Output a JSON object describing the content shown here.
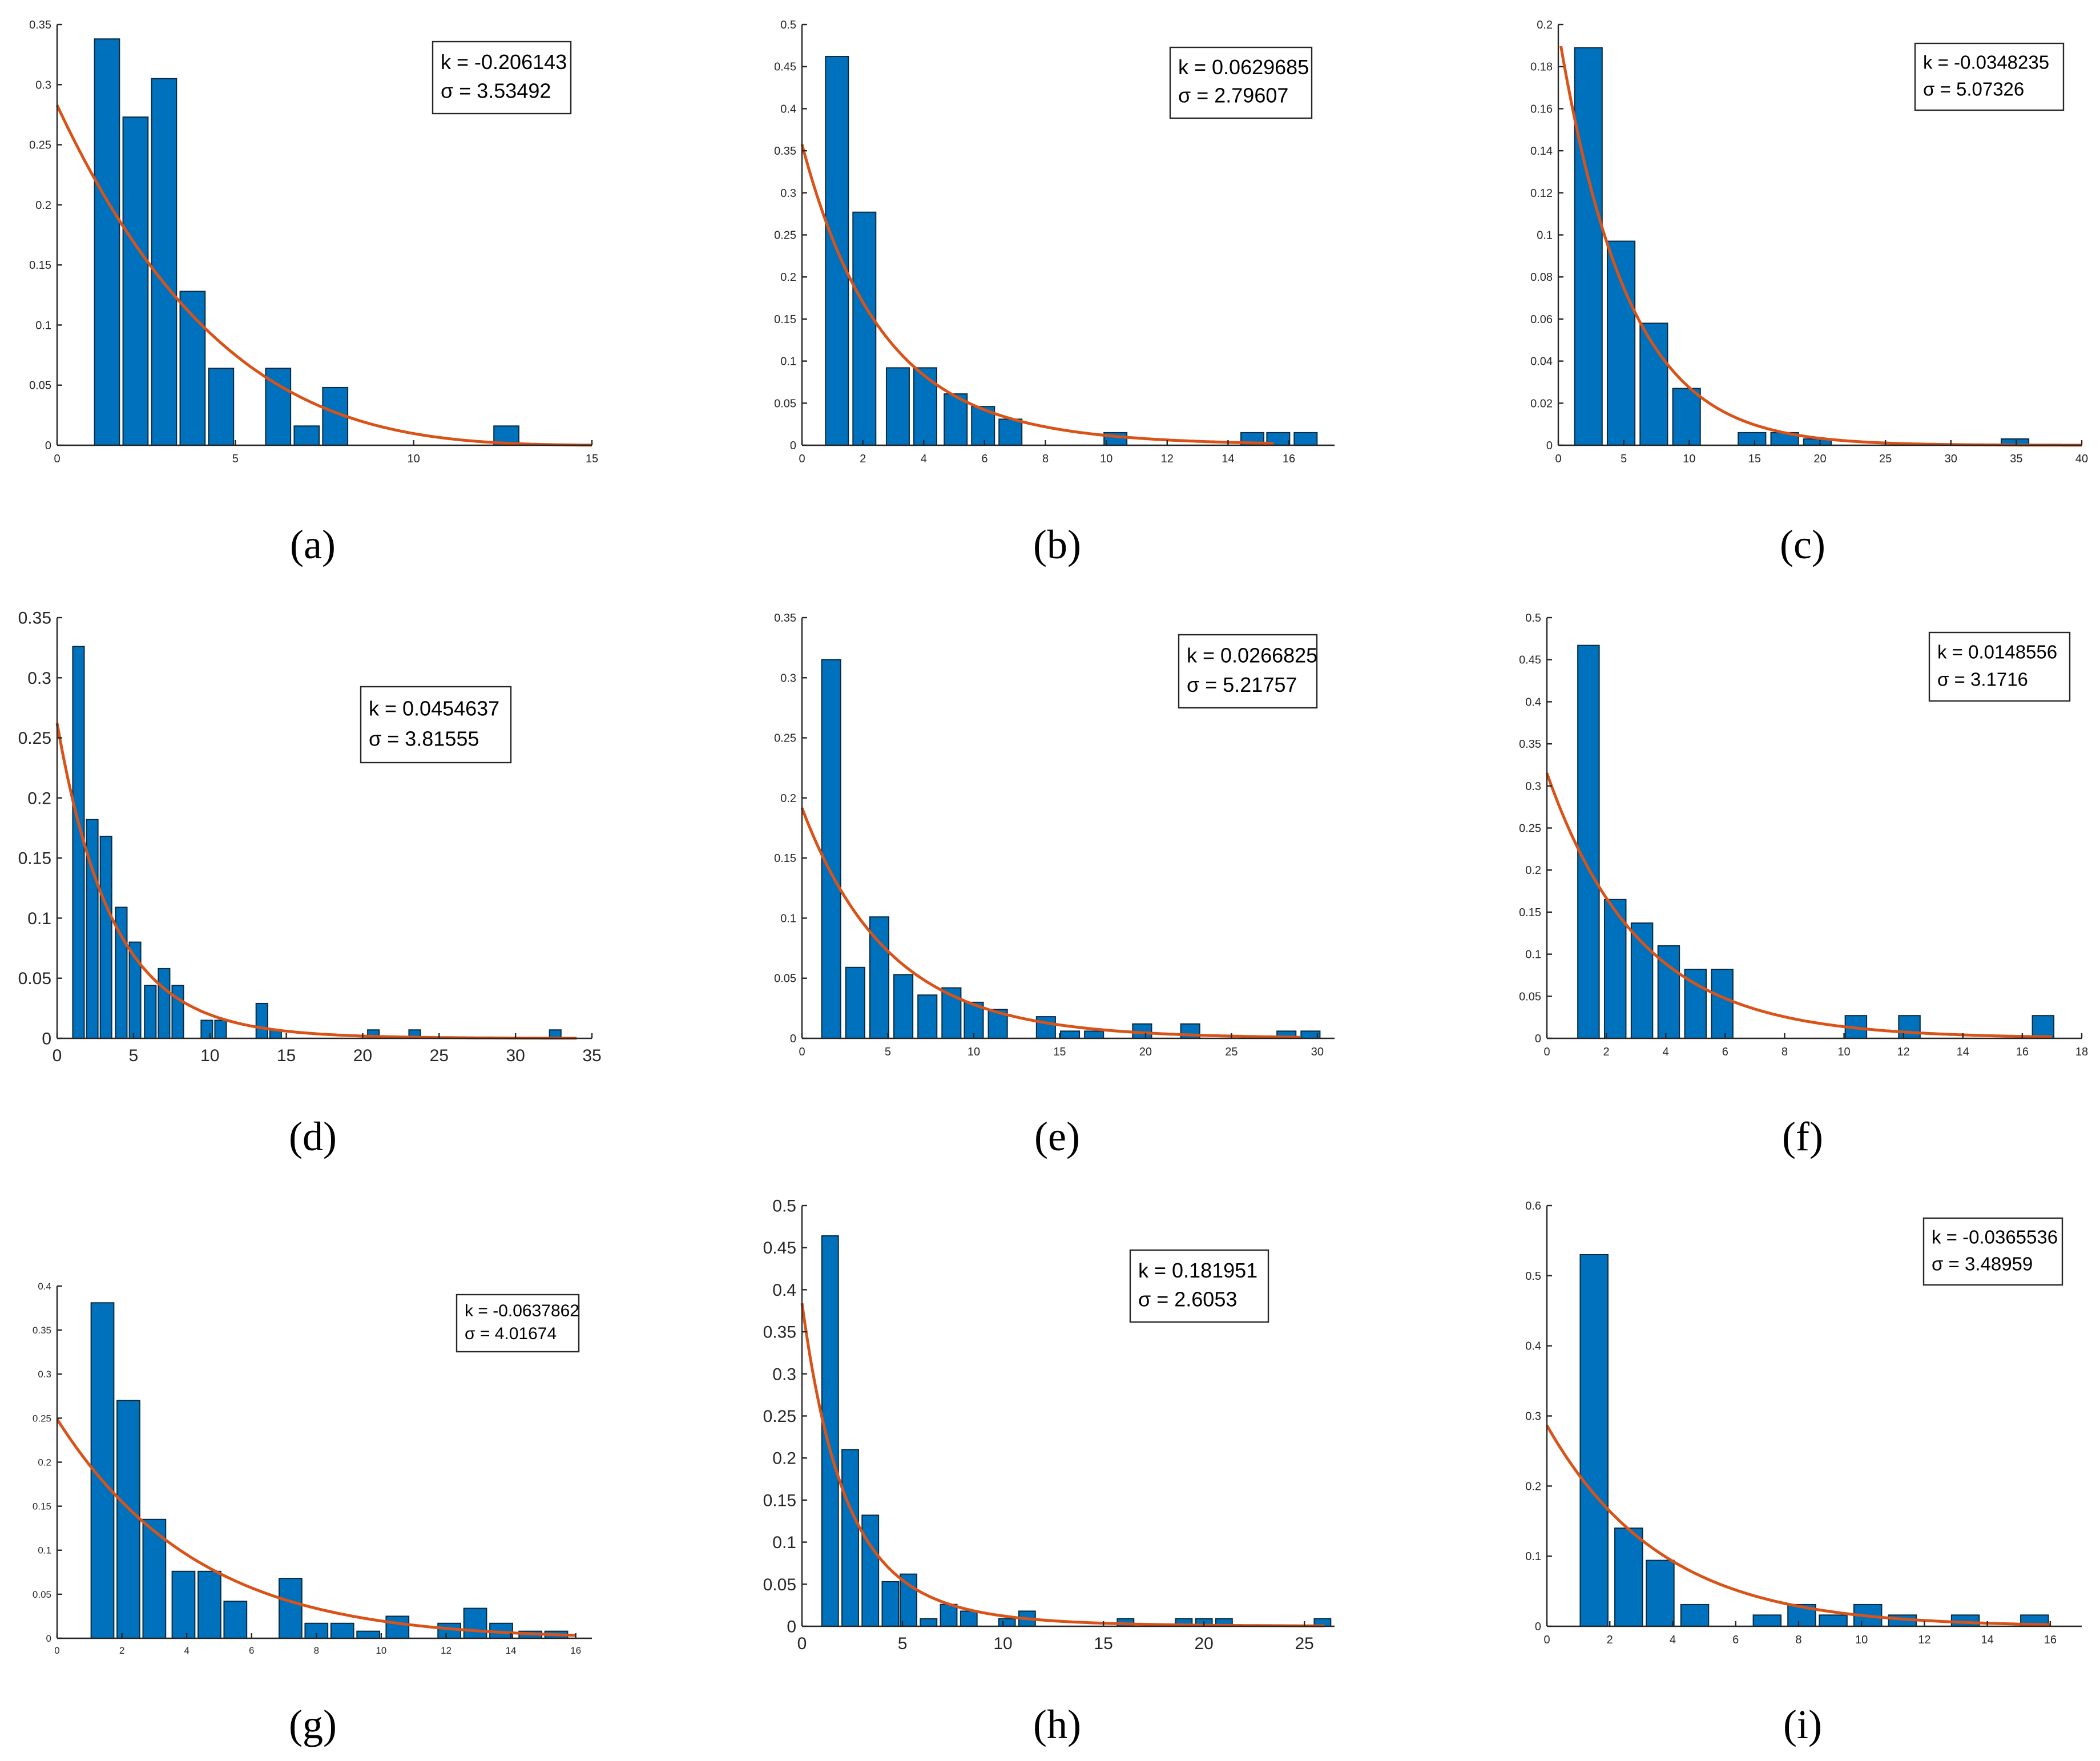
{
  "figure": {
    "colors": {
      "bar": "#0072BD",
      "fit": "#D95319",
      "axis": "#262626"
    }
  },
  "chart_data": [
    {
      "type": "bar",
      "caption": "(a)",
      "legend": [
        "k = -0.206143",
        "σ =   3.53492"
      ],
      "xlim": [
        0,
        15
      ],
      "ylim": [
        0,
        0.35
      ],
      "xticks": [
        0,
        5,
        10,
        15
      ],
      "xtick_labels": [
        "0",
        "5",
        "10",
        "15"
      ],
      "yticks": [
        0,
        0.05,
        0.1,
        0.15,
        0.2,
        0.25,
        0.3,
        0.35
      ],
      "ytick_labels": [
        "0",
        "0.05",
        "0.1",
        "0.15",
        "0.2",
        "0.25",
        "0.3",
        "0.35"
      ],
      "bar_width": 0.7,
      "x": [
        1.4,
        2.2,
        3.0,
        3.8,
        4.6,
        6.2,
        7.0,
        7.8,
        12.6
      ],
      "values": [
        0.338,
        0.273,
        0.305,
        0.128,
        0.064,
        0.064,
        0.016,
        0.048,
        0.016
      ],
      "fit": {
        "k": -0.206143,
        "sigma": 3.53492,
        "x_start": 0,
        "x_end": 15
      }
    },
    {
      "type": "bar",
      "caption": "(b)",
      "legend": [
        "k = 0.0629685",
        "σ =   2.79607"
      ],
      "xlim": [
        0,
        17.5
      ],
      "ylim": [
        0,
        0.5
      ],
      "xticks": [
        0,
        2,
        4,
        6,
        8,
        10,
        12,
        14,
        16
      ],
      "xtick_labels": [
        "0",
        "2",
        "4",
        "6",
        "8",
        "10",
        "12",
        "14",
        "16"
      ],
      "yticks": [
        0,
        0.05,
        0.1,
        0.15,
        0.2,
        0.25,
        0.3,
        0.35,
        0.4,
        0.45,
        0.5
      ],
      "ytick_labels": [
        "0",
        "0.05",
        "0.1",
        "0.15",
        "0.2",
        "0.25",
        "0.3",
        "0.35",
        "0.4",
        "0.45",
        "0.5"
      ],
      "bar_width": 0.75,
      "x": [
        1.15,
        2.05,
        3.15,
        4.05,
        5.05,
        5.95,
        6.85,
        10.3,
        14.8,
        15.65,
        16.55
      ],
      "values": [
        0.462,
        0.277,
        0.092,
        0.092,
        0.061,
        0.046,
        0.031,
        0.015,
        0.015,
        0.015,
        0.015
      ],
      "fit": {
        "k": 0.0629685,
        "sigma": 2.79607,
        "x_start": 0,
        "x_end": 15.5
      }
    },
    {
      "type": "bar",
      "caption": "(c)",
      "legend": [
        "k = -0.0348235",
        "σ = 5.07326"
      ],
      "xlim": [
        0,
        40
      ],
      "ylim": [
        0,
        0.2
      ],
      "xticks": [
        0,
        5,
        10,
        15,
        20,
        25,
        30,
        35,
        40
      ],
      "xtick_labels": [
        "0",
        "5",
        "10",
        "15",
        "20",
        "25",
        "30",
        "35",
        "40"
      ],
      "yticks": [
        0,
        0.02,
        0.04,
        0.06,
        0.08,
        0.1,
        0.12,
        0.14,
        0.16,
        0.18,
        0.2
      ],
      "ytick_labels": [
        "0",
        "0.02",
        "0.04",
        "0.06",
        "0.08",
        "0.1",
        "0.12",
        "0.14",
        "0.16",
        "0.18",
        "0.2"
      ],
      "bar_width": 2.1,
      "x": [
        2.3,
        4.8,
        7.3,
        9.8,
        14.8,
        17.3,
        19.8,
        34.9
      ],
      "values": [
        0.189,
        0.097,
        0.058,
        0.027,
        0.006,
        0.006,
        0.003,
        0.003
      ],
      "fit": {
        "k": -0.0348235,
        "sigma": 5.07326,
        "x_start": 0.2,
        "x_end": 40
      }
    },
    {
      "type": "bar",
      "caption": "(d)",
      "legend": [
        "k = 0.0454637",
        "σ =   3.81555"
      ],
      "xlim": [
        0,
        35
      ],
      "ylim": [
        0,
        0.35
      ],
      "xticks": [
        0,
        5,
        10,
        15,
        20,
        25,
        30,
        35
      ],
      "xtick_labels": [
        "0",
        "5",
        "10",
        "15",
        "20",
        "25",
        "30",
        "35"
      ],
      "yticks": [
        0,
        0.05,
        0.1,
        0.15,
        0.2,
        0.25,
        0.3,
        0.35
      ],
      "ytick_labels": [
        "0",
        "0.05",
        "0.1",
        "0.15",
        "0.2",
        "0.25",
        "0.3",
        "0.35"
      ],
      "bar_width": 0.75,
      "x": [
        1.4,
        2.3,
        3.2,
        4.2,
        5.1,
        6.1,
        7.0,
        7.9,
        9.8,
        10.7,
        13.4,
        14.3,
        20.7,
        23.4,
        32.6
      ],
      "values": [
        0.326,
        0.182,
        0.168,
        0.109,
        0.08,
        0.044,
        0.058,
        0.044,
        0.015,
        0.015,
        0.029,
        0.007,
        0.007,
        0.007,
        0.007
      ],
      "fit": {
        "k": 0.0454637,
        "sigma": 3.81555,
        "x_start": 0,
        "x_end": 34
      }
    },
    {
      "type": "bar",
      "caption": "(e)",
      "legend": [
        "k = 0.0266825",
        "σ = 5.21757"
      ],
      "xlim": [
        0,
        31
      ],
      "ylim": [
        0,
        0.35
      ],
      "xticks": [
        0,
        5,
        10,
        15,
        20,
        25,
        30
      ],
      "xtick_labels": [
        "0",
        "5",
        "10",
        "15",
        "20",
        "25",
        "30"
      ],
      "yticks": [
        0,
        0.05,
        0.1,
        0.15,
        0.2,
        0.25,
        0.3,
        0.35
      ],
      "ytick_labels": [
        "0",
        "0.05",
        "0.1",
        "0.15",
        "0.2",
        "0.25",
        "0.3",
        "0.35"
      ],
      "bar_width": 1.1,
      "x": [
        1.7,
        3.1,
        4.5,
        5.9,
        7.3,
        8.7,
        10.0,
        11.4,
        14.2,
        15.6,
        17.0,
        19.8,
        22.6,
        28.2,
        29.6
      ],
      "values": [
        0.315,
        0.059,
        0.101,
        0.053,
        0.036,
        0.042,
        0.03,
        0.024,
        0.018,
        0.006,
        0.006,
        0.012,
        0.012,
        0.006,
        0.006
      ],
      "fit": {
        "k": 0.0266825,
        "sigma": 5.21757,
        "x_start": 0,
        "x_end": 29
      }
    },
    {
      "type": "bar",
      "caption": "(f)",
      "legend": [
        "k = 0.0148556",
        "σ = 3.1716"
      ],
      "xlim": [
        0,
        18
      ],
      "ylim": [
        0,
        0.5
      ],
      "xticks": [
        0,
        2,
        4,
        6,
        8,
        10,
        12,
        14,
        16,
        18
      ],
      "xtick_labels": [
        "0",
        "2",
        "4",
        "6",
        "8",
        "10",
        "12",
        "14",
        "16",
        "18"
      ],
      "yticks": [
        0,
        0.05,
        0.1,
        0.15,
        0.2,
        0.25,
        0.3,
        0.35,
        0.4,
        0.45,
        0.5
      ],
      "ytick_labels": [
        "0",
        "0.05",
        "0.1",
        "0.15",
        "0.2",
        "0.25",
        "0.3",
        "0.35",
        "0.4",
        "0.45",
        "0.5"
      ],
      "bar_width": 0.72,
      "x": [
        1.4,
        2.3,
        3.2,
        4.1,
        5.0,
        5.9,
        10.4,
        12.2,
        16.7
      ],
      "values": [
        0.467,
        0.165,
        0.137,
        0.11,
        0.082,
        0.082,
        0.027,
        0.027,
        0.027
      ],
      "fit": {
        "k": 0.0148556,
        "sigma": 3.1716,
        "x_start": 0,
        "x_end": 17
      }
    },
    {
      "type": "bar",
      "caption": "(g)",
      "legend": [
        "k = -0.0637862",
        "σ = 4.01674"
      ],
      "xlim": [
        0,
        16.5
      ],
      "ylim": [
        0,
        0.4
      ],
      "xticks": [
        0,
        2,
        4,
        6,
        8,
        10,
        12,
        14,
        16
      ],
      "xtick_labels": [
        "0",
        "2",
        "4",
        "6",
        "8",
        "10",
        "12",
        "14",
        "16"
      ],
      "yticks": [
        0,
        0.05,
        0.1,
        0.15,
        0.2,
        0.25,
        0.3,
        0.35,
        0.4
      ],
      "ytick_labels": [
        "0",
        "0.05",
        "0.1",
        "0.15",
        "0.2",
        "0.25",
        "0.3",
        "0.35",
        "0.4"
      ],
      "bar_width": 0.7,
      "x": [
        1.4,
        2.2,
        3.0,
        3.9,
        4.7,
        5.5,
        7.2,
        8.0,
        8.8,
        9.6,
        10.5,
        12.1,
        12.9,
        13.7,
        14.6,
        15.4
      ],
      "values": [
        0.381,
        0.27,
        0.135,
        0.076,
        0.076,
        0.042,
        0.068,
        0.017,
        0.017,
        0.008,
        0.025,
        0.017,
        0.034,
        0.017,
        0.008,
        0.008
      ],
      "fit": {
        "k": -0.0637862,
        "sigma": 4.01674,
        "x_start": 0,
        "x_end": 16
      }
    },
    {
      "type": "bar",
      "caption": "(h)",
      "legend": [
        "k = 0.181951",
        "σ =   2.6053"
      ],
      "xlim": [
        0,
        26.5
      ],
      "ylim": [
        0,
        0.5
      ],
      "xticks": [
        0,
        5,
        10,
        15,
        20,
        25
      ],
      "xtick_labels": [
        "0",
        "5",
        "10",
        "15",
        "20",
        "25"
      ],
      "yticks": [
        0,
        0.05,
        0.1,
        0.15,
        0.2,
        0.25,
        0.3,
        0.35,
        0.4,
        0.45,
        0.5
      ],
      "ytick_labels": [
        "0",
        "0.05",
        "0.1",
        "0.15",
        "0.2",
        "0.25",
        "0.3",
        "0.35",
        "0.4",
        "0.45",
        "0.5"
      ],
      "bar_width": 0.82,
      "x": [
        1.4,
        2.4,
        3.4,
        4.4,
        5.3,
        6.3,
        7.3,
        8.3,
        10.2,
        11.2,
        16.1,
        19.0,
        20.0,
        21.0,
        25.9
      ],
      "values": [
        0.464,
        0.21,
        0.132,
        0.053,
        0.062,
        0.009,
        0.026,
        0.018,
        0.009,
        0.018,
        0.009,
        0.009,
        0.009,
        0.009,
        0.009
      ],
      "fit": {
        "k": 0.181951,
        "sigma": 2.6053,
        "x_start": 0,
        "x_end": 26
      }
    },
    {
      "type": "bar",
      "caption": "(i)",
      "legend": [
        "k = -0.0365536",
        "σ = 3.48959"
      ],
      "xlim": [
        0,
        17
      ],
      "ylim": [
        0,
        0.6
      ],
      "xticks": [
        0,
        2,
        4,
        6,
        8,
        10,
        12,
        14,
        16
      ],
      "xtick_labels": [
        "0",
        "2",
        "4",
        "6",
        "8",
        "10",
        "12",
        "14",
        "16"
      ],
      "yticks": [
        0,
        0.1,
        0.2,
        0.3,
        0.4,
        0.5,
        0.6
      ],
      "ytick_labels": [
        "0",
        "0.1",
        "0.2",
        "0.3",
        "0.4",
        "0.5",
        "0.6"
      ],
      "bar_width": 0.88,
      "x": [
        1.5,
        2.6,
        3.6,
        4.7,
        7.0,
        8.1,
        9.1,
        10.2,
        11.3,
        13.3,
        15.5
      ],
      "values": [
        0.53,
        0.14,
        0.094,
        0.031,
        0.016,
        0.031,
        0.016,
        0.031,
        0.016,
        0.016,
        0.016
      ],
      "fit": {
        "k": -0.0365536,
        "sigma": 3.48959,
        "x_start": 0,
        "x_end": 16
      }
    }
  ]
}
